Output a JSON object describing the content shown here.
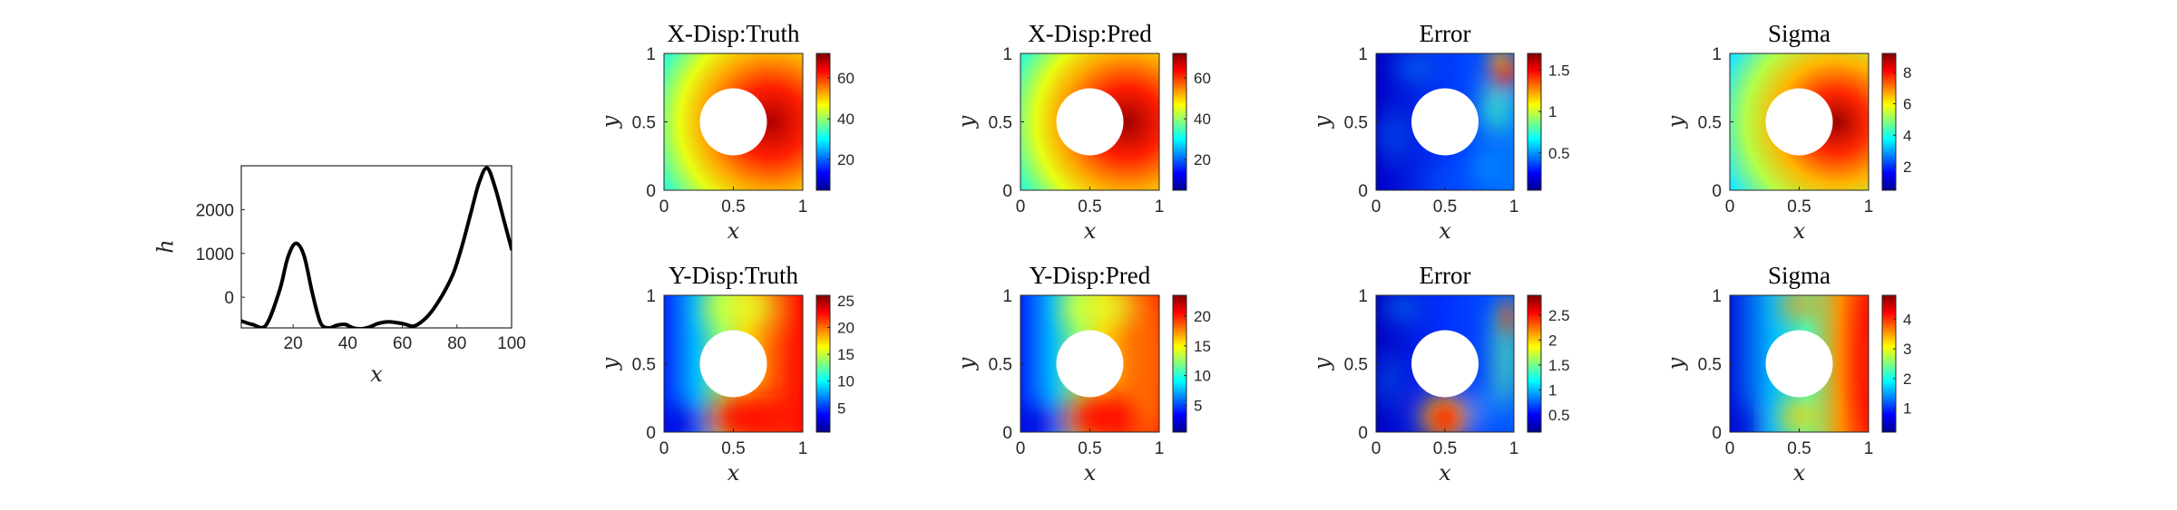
{
  "chart_data": [
    {
      "type": "line",
      "xlabel": "x",
      "ylabel": "h",
      "xlim": [
        1,
        100
      ],
      "ylim": [
        -700,
        3000
      ],
      "xticks": [
        "20",
        "40",
        "60",
        "80",
        "100"
      ],
      "yticks": [
        "0",
        "1000",
        "2000"
      ],
      "x": [
        1,
        5,
        10,
        15,
        18,
        21,
        24,
        27,
        30,
        33,
        36,
        39,
        42,
        45,
        48,
        51,
        55,
        60,
        64,
        67,
        70,
        73,
        76,
        79,
        82,
        85,
        88,
        91,
        94,
        97,
        100
      ],
      "y": [
        -540,
        -620,
        -640,
        150,
        900,
        1230,
        950,
        100,
        -580,
        -700,
        -640,
        -620,
        -700,
        -720,
        -680,
        -600,
        -560,
        -600,
        -660,
        -560,
        -380,
        -120,
        200,
        600,
        1200,
        1900,
        2600,
        2950,
        2500,
        1800,
        1100
      ],
      "line_color": "#000000",
      "grid": false
    },
    {
      "type": "heatmap",
      "title": "X-Disp:Truth",
      "xlabel": "x",
      "ylabel": "y",
      "xticks": [
        "0",
        "0.5",
        "1"
      ],
      "yticks": [
        "0",
        "0.5",
        "1"
      ],
      "colorbar_ticks": [
        "20",
        "40",
        "60"
      ],
      "colorbar_range": [
        5,
        72
      ],
      "field": "xtruth"
    },
    {
      "type": "heatmap",
      "title": "X-Disp:Pred",
      "xlabel": "x",
      "ylabel": "y",
      "xticks": [
        "0",
        "0.5",
        "1"
      ],
      "yticks": [
        "0",
        "0.5",
        "1"
      ],
      "colorbar_ticks": [
        "20",
        "40",
        "60"
      ],
      "colorbar_range": [
        5,
        72
      ],
      "field": "xpred"
    },
    {
      "type": "heatmap",
      "title": "Error",
      "xlabel": "x",
      "ylabel": "y",
      "xticks": [
        "0",
        "0.5",
        "1"
      ],
      "yticks": [
        "0",
        "0.5",
        "1"
      ],
      "colorbar_ticks": [
        "0.5",
        "1",
        "1.5"
      ],
      "colorbar_range": [
        0.05,
        1.7
      ],
      "field": "xerror"
    },
    {
      "type": "heatmap",
      "title": "Sigma",
      "xlabel": "x",
      "ylabel": "y",
      "xticks": [
        "0",
        "0.5",
        "1"
      ],
      "yticks": [
        "0",
        "0.5",
        "1"
      ],
      "colorbar_ticks": [
        "2",
        "4",
        "6",
        "8"
      ],
      "colorbar_range": [
        0.5,
        9.2
      ],
      "field": "xsigma"
    },
    {
      "type": "heatmap",
      "title": "Y-Disp:Truth",
      "xlabel": "x",
      "ylabel": "y",
      "xticks": [
        "0",
        "0.5",
        "1"
      ],
      "yticks": [
        "0",
        "0.5",
        "1"
      ],
      "colorbar_ticks": [
        "5",
        "10",
        "15",
        "20",
        "25"
      ],
      "colorbar_range": [
        0.5,
        26
      ],
      "field": "ytruth"
    },
    {
      "type": "heatmap",
      "title": "Y-Disp:Pred",
      "xlabel": "x",
      "ylabel": "y",
      "xticks": [
        "0",
        "0.5",
        "1"
      ],
      "yticks": [
        "0",
        "0.5",
        "1"
      ],
      "colorbar_ticks": [
        "5",
        "10",
        "15",
        "20"
      ],
      "colorbar_range": [
        0.5,
        23.5
      ],
      "field": "ypred"
    },
    {
      "type": "heatmap",
      "title": "Error",
      "xlabel": "x",
      "ylabel": "y",
      "xticks": [
        "0",
        "0.5",
        "1"
      ],
      "yticks": [
        "0",
        "0.5",
        "1"
      ],
      "colorbar_ticks": [
        "0.5",
        "1",
        "1.5",
        "2",
        "2.5"
      ],
      "colorbar_range": [
        0.15,
        2.9
      ],
      "field": "yerror"
    },
    {
      "type": "heatmap",
      "title": "Sigma",
      "xlabel": "x",
      "ylabel": "y",
      "xticks": [
        "0",
        "0.5",
        "1"
      ],
      "yticks": [
        "0",
        "0.5",
        "1"
      ],
      "colorbar_ticks": [
        "1",
        "2",
        "3",
        "4"
      ],
      "colorbar_range": [
        0.2,
        4.8
      ],
      "field": "ysigma"
    }
  ],
  "colormap": "jet"
}
